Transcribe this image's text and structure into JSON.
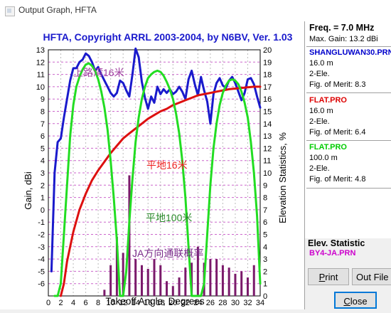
{
  "window": {
    "title": "Output Graph, HFTA"
  },
  "chart_data": {
    "type": "line",
    "title": "HFTA, Copyright ARRL 2003-2004, by N6BV, Ver. 1.03",
    "xlabel": "Takeoff Angle, Degrees",
    "ylabel": "Gain, dBi",
    "y2label": "Elevation Statistics, %",
    "xlim": [
      0,
      34
    ],
    "ylim": [
      -7,
      13
    ],
    "y2lim": [
      0,
      20
    ],
    "x_ticks": [
      "0",
      "2",
      "4",
      "6",
      "8",
      "10",
      "12",
      "14",
      "16",
      "18",
      "20",
      "22",
      "24",
      "26",
      "28",
      "30",
      "32",
      "34"
    ],
    "y_ticks": [
      "-6",
      "-5",
      "-4",
      "-3",
      "-2",
      "-1",
      "0",
      "1",
      "2",
      "3",
      "4",
      "5",
      "6",
      "7",
      "8",
      "9",
      "10",
      "11",
      "12",
      "13"
    ],
    "y2_ticks": [
      "0",
      "1",
      "2",
      "3",
      "4",
      "5",
      "6",
      "7",
      "8",
      "9",
      "10",
      "11",
      "12",
      "13",
      "14",
      "15",
      "16",
      "17",
      "18",
      "19",
      "20"
    ],
    "grid": true,
    "annotations": [
      "上路湾16米",
      "平地16米",
      "平地100米",
      "JA方向通联概率"
    ],
    "series": [
      {
        "name": "SHANGLUWAN30.PRN",
        "color": "#1a1acc",
        "x": [
          0.5,
          1,
          1.5,
          2,
          2.5,
          3,
          3.5,
          4,
          4.5,
          5,
          5.5,
          6,
          6.5,
          7,
          7.5,
          8,
          8.5,
          9,
          9.5,
          10,
          10.5,
          11,
          11.5,
          12,
          12.5,
          13,
          13.5,
          14,
          14.5,
          15,
          15.5,
          16,
          16.5,
          17,
          17.5,
          18,
          18.5,
          19,
          19.5,
          20,
          20.5,
          21,
          21.5,
          22,
          22.5,
          23,
          23.5,
          24,
          24.5,
          25,
          25.5,
          26,
          26.5,
          27,
          27.5,
          28,
          28.5,
          29,
          29.5,
          30,
          30.5,
          31,
          31.5,
          32,
          32.5,
          33,
          33.5,
          34
        ],
        "y": [
          -5,
          3,
          5.5,
          5.8,
          7.5,
          9,
          10.5,
          11.5,
          11.5,
          12,
          12.2,
          12.7,
          12.5,
          12,
          11.3,
          11.6,
          11,
          10.5,
          10,
          9.5,
          9.2,
          9.5,
          10.5,
          10.3,
          9.7,
          9.2,
          11,
          13.1,
          12.4,
          10.4,
          9.1,
          8.2,
          9.2,
          8.7,
          10,
          9.4,
          9.8,
          9.5,
          9.8,
          9.4,
          9.6,
          10,
          9.6,
          9,
          10.6,
          11.3,
          10.2,
          9.3,
          10.8,
          9.7,
          8.8,
          7,
          9.4,
          10.3,
          10.7,
          10.1,
          9.9,
          10.5,
          10.8,
          10.3,
          9.6,
          8.9,
          9.5,
          10.6,
          10.7,
          10.2,
          9.2,
          8.3
        ]
      },
      {
        "name": "FLAT.PRO",
        "color": "#dd1010",
        "x": [
          2,
          2.5,
          3,
          4,
          5,
          6,
          7,
          8,
          9,
          10,
          11,
          12,
          13,
          14,
          15,
          16,
          17,
          18,
          19,
          20,
          21,
          22,
          23,
          24,
          25,
          26,
          27,
          28,
          29,
          30,
          31,
          32,
          33,
          34
        ],
        "y": [
          -7,
          -6,
          -4.2,
          -1.8,
          0,
          1.3,
          2.4,
          3.2,
          3.9,
          4.6,
          5.2,
          5.8,
          6.2,
          6.6,
          7,
          7.4,
          7.7,
          8,
          8.2,
          8.5,
          8.7,
          8.9,
          9.1,
          9.3,
          9.4,
          9.5,
          9.6,
          9.7,
          9.8,
          9.85,
          9.9,
          9.95,
          10,
          10
        ]
      },
      {
        "name": "FLAT.PRO",
        "color": "#22dd22",
        "x": [
          1,
          1.5,
          2,
          2.5,
          3,
          3.5,
          4,
          4.5,
          5,
          5.5,
          6,
          6.5,
          7,
          7.5,
          8,
          8.5,
          9,
          9.5,
          10,
          10.5,
          11,
          11.5,
          12,
          12.5,
          13,
          13.5,
          14,
          14.5,
          15,
          15.5,
          16,
          16.5,
          17,
          17.5,
          18,
          18.5,
          19,
          19.5,
          20,
          20.5,
          21,
          21.5,
          22,
          22.5,
          23,
          23.5,
          24,
          24.5,
          25,
          25.5,
          26,
          26.5,
          27,
          27.5,
          28,
          28.5,
          29,
          29.5,
          30,
          30.5,
          31,
          31.5,
          32,
          32.5,
          33,
          33.5,
          34
        ],
        "y": [
          -7,
          -7,
          -6,
          -2,
          2,
          6,
          8.5,
          10,
          10.8,
          11.4,
          11.8,
          11.9,
          11.7,
          11.3,
          10.6,
          9.6,
          8.3,
          6.5,
          4,
          1,
          -2.5,
          -7,
          -7,
          -5,
          -1,
          2.5,
          5.5,
          7.5,
          9,
          10,
          10.7,
          11,
          11.2,
          11.3,
          11.2,
          10.9,
          10.4,
          9.8,
          9,
          7.8,
          6.2,
          4,
          1,
          -3,
          -7,
          -7,
          -7,
          -7,
          -6,
          -2,
          2,
          5,
          7,
          8.5,
          9.5,
          10.1,
          10.5,
          10.6,
          10.5,
          10.2,
          9.6,
          8.7,
          7.5,
          5.5,
          3,
          -0.5,
          -6
        ]
      },
      {
        "name": "BY4-JA.PRN",
        "color": "#7a1a6a",
        "type": "bar",
        "axis": "y2",
        "x": [
          9,
          10,
          11,
          12,
          13,
          14,
          15,
          16,
          17,
          18,
          19,
          20,
          21,
          22,
          23,
          24,
          25,
          26,
          27,
          28,
          29,
          30,
          31,
          32,
          33
        ],
        "values": [
          0.5,
          2.5,
          4.8,
          3.5,
          9.8,
          3,
          2.5,
          2.2,
          3,
          2.5,
          1.2,
          0.8,
          1.5,
          2.3,
          2.7,
          4,
          2.7,
          3,
          3,
          2.5,
          2.3,
          1.8,
          2,
          1.5,
          2.5
        ]
      }
    ]
  },
  "legend": {
    "freq": "Freq. = 7.0 MHz",
    "max_gain": "Max. Gain: 13.2 dBi",
    "entries": [
      {
        "file": "SHANGLUWAN30.PRN",
        "height": "16.0 m",
        "type": "2-Ele.",
        "merit": "Fig. of Merit: 8.3",
        "color": "#0000cc"
      },
      {
        "file": "FLAT.PRO",
        "height": "16.0 m",
        "type": "2-Ele.",
        "merit": "Fig. of Merit: 6.4",
        "color": "#dd0000"
      },
      {
        "file": "FLAT.PRO",
        "height": "100.0 m",
        "type": "2-Ele.",
        "merit": "Fig. of Merit: 4.8",
        "color": "#00cc00"
      }
    ],
    "elev_title": "Elev. Statistic",
    "elev_file": "BY4-JA.PRN"
  },
  "buttons": {
    "print_pre": "",
    "print_hot": "P",
    "print_post": "rint",
    "outfile_pre": "Out Fil",
    "outfile_hot": "",
    "outfile_post": "e",
    "close_pre": "",
    "close_hot": "C",
    "close_post": "lose"
  }
}
